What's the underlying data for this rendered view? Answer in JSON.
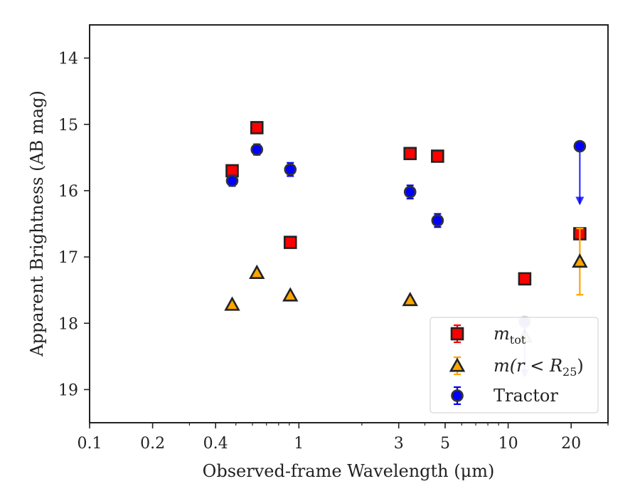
{
  "chart_data": {
    "type": "scatter",
    "title": "",
    "xlabel": "Observed-frame Wavelength (μm)",
    "ylabel": "Apparent Brightness (AB mag)",
    "xscale": "log",
    "xlim": [
      0.1,
      30
    ],
    "ylim": [
      19.5,
      13.5
    ],
    "y_inverted": true,
    "xticks": [
      {
        "value": 0.1,
        "label": "0.1"
      },
      {
        "value": 0.2,
        "label": "0.2"
      },
      {
        "value": 0.4,
        "label": "0.4"
      },
      {
        "value": 1,
        "label": "1"
      },
      {
        "value": 3,
        "label": "3"
      },
      {
        "value": 5,
        "label": "5"
      },
      {
        "value": 10,
        "label": "10"
      },
      {
        "value": 20,
        "label": "20"
      }
    ],
    "yticks": [
      {
        "value": 14,
        "label": "14"
      },
      {
        "value": 15,
        "label": "15"
      },
      {
        "value": 16,
        "label": "16"
      },
      {
        "value": 17,
        "label": "17"
      },
      {
        "value": 18,
        "label": "18"
      },
      {
        "value": 19,
        "label": "19"
      }
    ],
    "grid": false,
    "legend_position": "lower-right",
    "series": [
      {
        "name": "m_tot",
        "legend_text": "m",
        "legend_sub": "tot",
        "marker": "square",
        "color": "#ff0000",
        "edge_color": "#222222",
        "errbar_color": "#ff0000",
        "points": [
          {
            "x": 0.48,
            "y": 15.7,
            "err": 0.08
          },
          {
            "x": 0.63,
            "y": 15.05,
            "err": 0.07
          },
          {
            "x": 0.91,
            "y": 16.78,
            "err": 0.08
          },
          {
            "x": 3.4,
            "y": 15.44,
            "err": 0.06
          },
          {
            "x": 4.6,
            "y": 15.48,
            "err": 0.06
          },
          {
            "x": 12.0,
            "y": 17.33,
            "err": 0.08
          },
          {
            "x": 22.0,
            "y": 16.65,
            "err": 0.08
          }
        ]
      },
      {
        "name": "m(r < R25)",
        "legend_text": "m(r < R",
        "legend_sub": "25",
        "legend_tail": ")",
        "marker": "triangle",
        "color": "#ffa500",
        "edge_color": "#222222",
        "errbar_color": "#ffa500",
        "points": [
          {
            "x": 0.48,
            "y": 17.72,
            "err": 0.0
          },
          {
            "x": 0.63,
            "y": 17.24,
            "err": 0.0
          },
          {
            "x": 0.91,
            "y": 17.58,
            "err": 0.0
          },
          {
            "x": 3.4,
            "y": 17.65,
            "err": 0.0
          },
          {
            "x": 12.0,
            "y": 18.2,
            "err": 0.0,
            "faded": true
          },
          {
            "x": 22.0,
            "y": 17.07,
            "err": 0.5
          }
        ]
      },
      {
        "name": "Tractor",
        "legend_text": "Tractor",
        "marker": "circle",
        "color": "#0000ff",
        "edge_color": "#333333",
        "errbar_color": "#0000ff",
        "points": [
          {
            "x": 0.48,
            "y": 15.85,
            "err": 0.08
          },
          {
            "x": 0.63,
            "y": 15.38,
            "err": 0.08
          },
          {
            "x": 0.91,
            "y": 15.68,
            "err": 0.1
          },
          {
            "x": 3.4,
            "y": 16.02,
            "err": 0.1
          },
          {
            "x": 4.6,
            "y": 16.45,
            "err": 0.1
          },
          {
            "x": 12.0,
            "y": 17.98,
            "err": 0.0,
            "upper_limit": true,
            "arrow_to": 18.8,
            "faded": true
          },
          {
            "x": 22.0,
            "y": 15.33,
            "err": 0.0,
            "upper_limit": true,
            "arrow_to": 16.2
          }
        ]
      }
    ]
  }
}
